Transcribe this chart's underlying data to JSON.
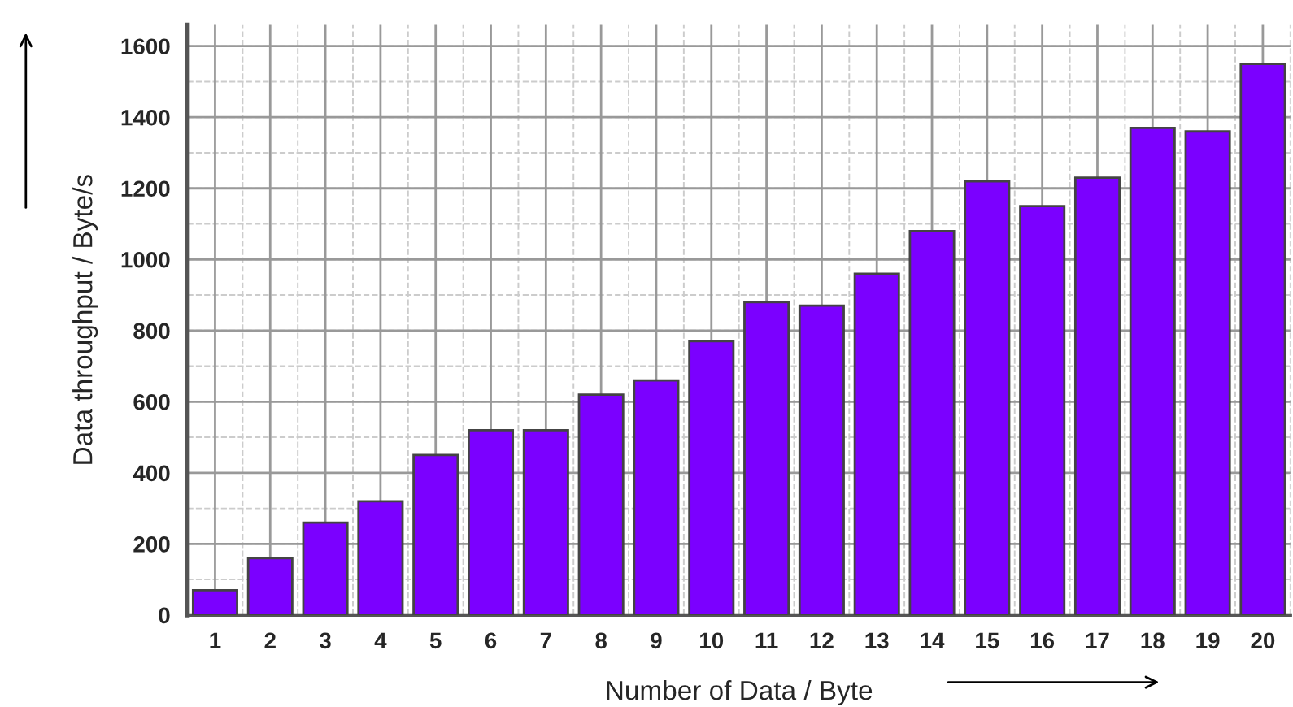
{
  "chart_data": {
    "type": "bar",
    "xlabel": "Number of Data / Byte",
    "ylabel": "Data throughput / Byte/s",
    "categories": [
      "1",
      "2",
      "3",
      "4",
      "5",
      "6",
      "7",
      "8",
      "9",
      "10",
      "11",
      "12",
      "13",
      "14",
      "15",
      "16",
      "17",
      "18",
      "19",
      "20"
    ],
    "values": [
      70,
      160,
      260,
      320,
      450,
      520,
      520,
      620,
      660,
      770,
      880,
      870,
      960,
      1080,
      1220,
      1150,
      1230,
      1370,
      1360,
      1550
    ],
    "color": "#7b00ff",
    "ylim": [
      0,
      1660
    ],
    "yticks": [
      0,
      200,
      400,
      600,
      800,
      1000,
      1200,
      1400,
      1600
    ],
    "grid": true
  }
}
